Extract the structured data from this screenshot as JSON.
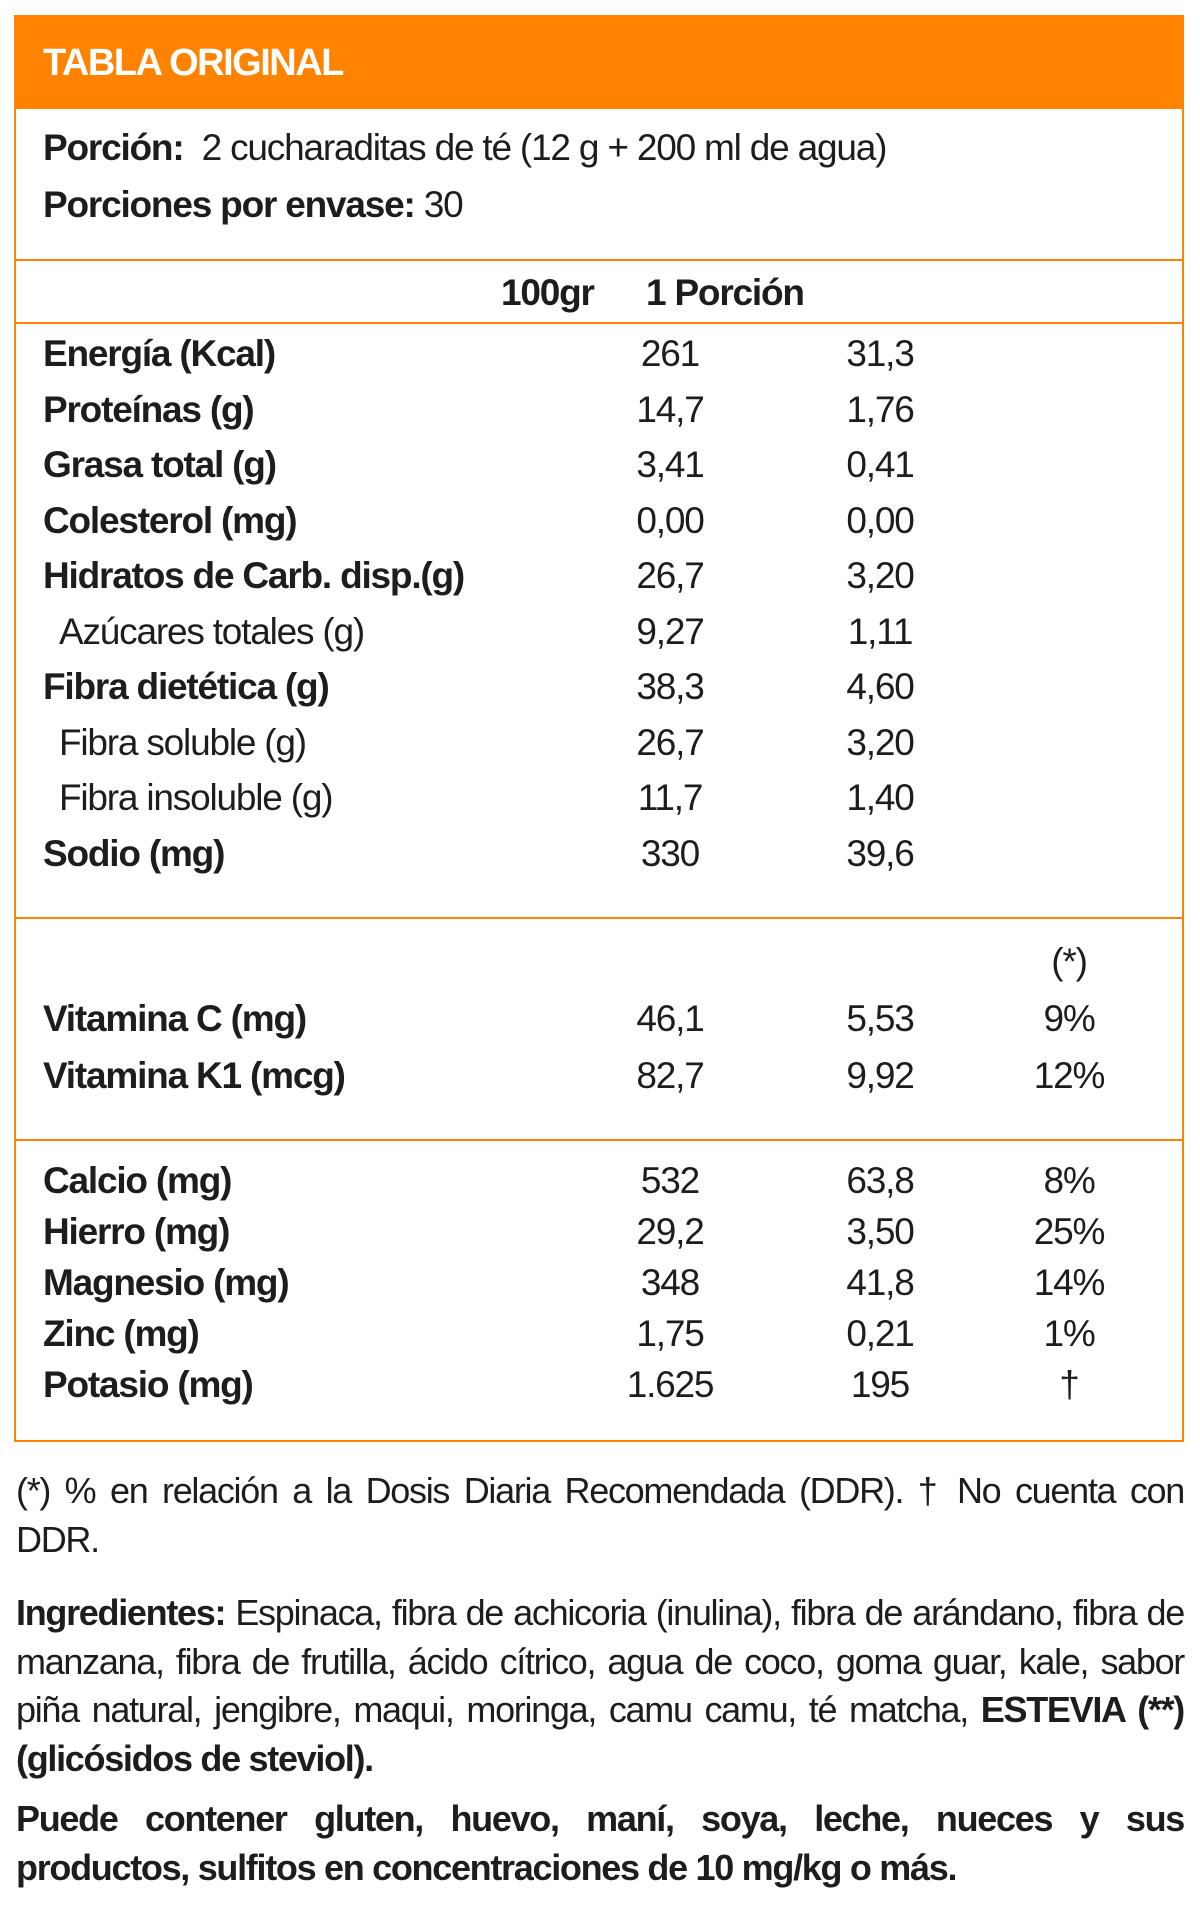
{
  "title": "TABLA ORIGINAL",
  "serving": {
    "label": "Porción:",
    "value": "2 cucharaditas de té (12 g + 200 ml de agua)"
  },
  "servings_per_container": {
    "label": "Porciones por envase:",
    "value": "30"
  },
  "columns": {
    "per100": "100gr",
    "per_serving": "1 Porción",
    "ddr": "(*)"
  },
  "macros": [
    {
      "name": "Energía (Kcal)",
      "per100": "261",
      "per_serving": "31,3"
    },
    {
      "name": "Proteínas (g)",
      "per100": "14,7",
      "per_serving": "1,76"
    },
    {
      "name": "Grasa total (g)",
      "per100": "3,41",
      "per_serving": "0,41"
    },
    {
      "name": "Colesterol (mg)",
      "per100": "0,00",
      "per_serving": "0,00"
    },
    {
      "name": "Hidratos de Carb. disp.(g)",
      "per100": "26,7",
      "per_serving": "3,20"
    },
    {
      "name": "Azúcares totales (g)",
      "per100": "9,27",
      "per_serving": "1,11"
    },
    {
      "name": "Fibra dietética (g)",
      "per100": "38,3",
      "per_serving": "4,60"
    },
    {
      "name": "Fibra soluble (g)",
      "per100": "26,7",
      "per_serving": "3,20"
    },
    {
      "name": "Fibra insoluble (g)",
      "per100": "11,7",
      "per_serving": "1,40"
    },
    {
      "name": "Sodio (mg)",
      "per100": "330",
      "per_serving": "39,6"
    }
  ],
  "vitamins": [
    {
      "name": "Vitamina C (mg)",
      "per100": "46,1",
      "per_serving": "5,53",
      "ddr": "9%"
    },
    {
      "name": "Vitamina K1 (mcg)",
      "per100": "82,7",
      "per_serving": "9,92",
      "ddr": "12%"
    }
  ],
  "minerals": [
    {
      "name": "Calcio (mg)",
      "per100": "532",
      "per_serving": "63,8",
      "ddr": "8%"
    },
    {
      "name": "Hierro (mg)",
      "per100": "29,2",
      "per_serving": "3,50",
      "ddr": "25%"
    },
    {
      "name": "Magnesio (mg)",
      "per100": "348",
      "per_serving": "41,8",
      "ddr": "14%"
    },
    {
      "name": "Zinc (mg)",
      "per100": "1,75",
      "per_serving": "0,21",
      "ddr": "1%"
    },
    {
      "name": "Potasio (mg)",
      "per100": "1.625",
      "per_serving": "195",
      "ddr": "†"
    }
  ],
  "footnote": "(*) % en relación a la Dosis Diaria Recomendada (DDR). † No cuenta con DDR.",
  "ingredients": {
    "label": "Ingredientes:",
    "text": "Espinaca, fibra de achicoria (inulina), fibra de arándano, fibra de manzana, fibra de frutilla, ácido cítrico, agua de coco, goma guar, kale, sabor piña natural, jengibre, maqui, moringa, camu camu, té matcha,",
    "bold_tail": "ESTEVIA (**) (glicósidos de steviol)."
  },
  "allergens": "Puede contener gluten, huevo, maní, soya, leche, nueces y sus productos, sulfitos en concentraciones de 10 mg/kg o más."
}
